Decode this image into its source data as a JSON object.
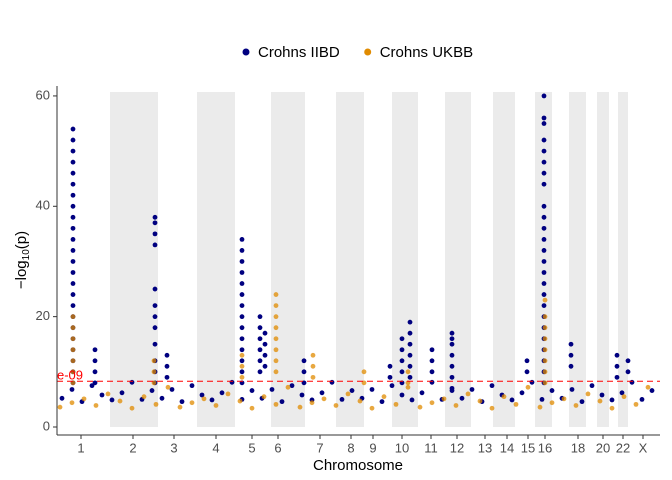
{
  "chart_data": {
    "type": "scatter",
    "x_label": "Chromosome",
    "y_label_parts": [
      "−log",
      "10",
      "(p)"
    ],
    "xlim": [
      0,
      603
    ],
    "ylim": [
      -1.45,
      61.8
    ],
    "yticks": [
      0,
      20,
      40,
      60
    ],
    "xticks": [
      {
        "value": 24,
        "label": "1"
      },
      {
        "value": 76,
        "label": "2"
      },
      {
        "value": 117,
        "label": "3"
      },
      {
        "value": 159,
        "label": "4"
      },
      {
        "value": 195,
        "label": "5"
      },
      {
        "value": 221,
        "label": "6"
      },
      {
        "value": 263,
        "label": "7"
      },
      {
        "value": 294,
        "label": "8"
      },
      {
        "value": 316,
        "label": "9"
      },
      {
        "value": 345,
        "label": "10"
      },
      {
        "value": 374,
        "label": "11"
      },
      {
        "value": 400,
        "label": "12"
      },
      {
        "value": 428,
        "label": "13"
      },
      {
        "value": 450,
        "label": "14"
      },
      {
        "value": 471,
        "label": "15"
      },
      {
        "value": 488,
        "label": "16"
      },
      {
        "value": 521,
        "label": "18"
      },
      {
        "value": 546,
        "label": "20"
      },
      {
        "value": 566,
        "label": "22"
      },
      {
        "value": 586,
        "label": "X"
      }
    ],
    "bands": [
      [
        53,
        101
      ],
      [
        140,
        178
      ],
      [
        214,
        248
      ],
      [
        279,
        307
      ],
      [
        335,
        361
      ],
      [
        388,
        414
      ],
      [
        436,
        458
      ],
      [
        478,
        495
      ],
      [
        512,
        529
      ],
      [
        540,
        552
      ],
      [
        561,
        571
      ]
    ],
    "band_color": "#ebebeb",
    "threshold": 8.3,
    "threshold_label": "e-09",
    "threshold_color": "#ff0000",
    "legend": "top",
    "series": [
      {
        "name": "Crohns IIBD",
        "color": "#000080",
        "x": [
          5,
          15,
          25,
          35,
          45,
          55,
          65,
          75,
          85,
          95,
          105,
          115,
          125,
          135,
          145,
          155,
          165,
          175,
          185,
          195,
          205,
          215,
          225,
          235,
          245,
          255,
          265,
          275,
          285,
          295,
          305,
          315,
          325,
          335,
          345,
          355,
          365,
          375,
          385,
          395,
          405,
          415,
          425,
          435,
          445,
          455,
          465,
          475,
          485,
          495,
          505,
          515,
          525,
          535,
          545,
          555,
          565,
          575,
          585,
          595,
          16,
          16,
          16,
          16,
          16,
          16,
          16,
          16,
          16,
          16,
          16,
          16,
          16,
          16,
          16,
          16,
          16,
          16,
          16,
          16,
          16,
          16,
          16,
          16,
          38,
          38,
          38,
          38,
          98,
          98,
          98,
          98,
          98,
          98,
          98,
          98,
          98,
          98,
          98,
          98,
          110,
          110,
          110,
          185,
          185,
          185,
          185,
          185,
          185,
          185,
          185,
          185,
          185,
          185,
          185,
          185,
          185,
          203,
          203,
          203,
          203,
          203,
          203,
          208,
          208,
          208,
          208,
          247,
          247,
          247,
          333,
          333,
          345,
          345,
          345,
          345,
          345,
          353,
          353,
          353,
          353,
          353,
          353,
          375,
          375,
          375,
          395,
          395,
          395,
          395,
          395,
          395,
          395,
          470,
          470,
          487,
          487,
          487,
          487,
          487,
          487,
          487,
          487,
          487,
          487,
          487,
          487,
          487,
          487,
          487,
          487,
          487,
          487,
          487,
          487,
          487,
          487,
          487,
          487,
          487,
          514,
          514,
          514,
          560,
          560,
          560,
          571,
          571
        ],
        "values": [
          5.2,
          6.8,
          4.6,
          7.5,
          5.8,
          4.9,
          6.2,
          8.1,
          5.0,
          6.6,
          5.2,
          6.8,
          4.6,
          7.5,
          5.8,
          4.9,
          6.2,
          8.1,
          5.0,
          6.6,
          5.2,
          6.8,
          4.6,
          7.5,
          5.8,
          4.9,
          6.2,
          8.1,
          5.0,
          6.6,
          5.2,
          6.8,
          4.6,
          7.5,
          5.8,
          4.9,
          6.2,
          8.1,
          5.0,
          6.6,
          5.2,
          6.8,
          4.6,
          7.5,
          5.8,
          4.9,
          6.2,
          8.1,
          5.0,
          6.6,
          5.2,
          6.8,
          4.6,
          7.5,
          5.8,
          4.9,
          6.2,
          8.1,
          5.0,
          6.6,
          54,
          52,
          50,
          48,
          46,
          44,
          42,
          40,
          38,
          36,
          34,
          32,
          30,
          28,
          26,
          24,
          22,
          20,
          18,
          16,
          14,
          12,
          10,
          8,
          14,
          12,
          10,
          8,
          38,
          37,
          35,
          33,
          25,
          22,
          20,
          18,
          15,
          12,
          10,
          8,
          13,
          11,
          9,
          34,
          32,
          30,
          28,
          26,
          24,
          22,
          20,
          18,
          16,
          14,
          12,
          10,
          8,
          20,
          18,
          16,
          14,
          12,
          10,
          17,
          15,
          13,
          11,
          12,
          10,
          8,
          11,
          9,
          16,
          14,
          12,
          10,
          8,
          19,
          17,
          15,
          13,
          11,
          9,
          14,
          12,
          10,
          17,
          16,
          15,
          13,
          11,
          9,
          7,
          12,
          10,
          60,
          56,
          55,
          52,
          50,
          48,
          46,
          44,
          40,
          38,
          36,
          34,
          32,
          30,
          28,
          26,
          24,
          22,
          20,
          18,
          16,
          14,
          12,
          10,
          8,
          15,
          13,
          11,
          13,
          11,
          9,
          12,
          10
        ]
      },
      {
        "name": "Crohns UKBB",
        "color": "#e08b00",
        "x": [
          3,
          15,
          27,
          39,
          51,
          63,
          75,
          87,
          99,
          111,
          123,
          135,
          147,
          159,
          171,
          183,
          195,
          207,
          219,
          231,
          243,
          255,
          267,
          279,
          291,
          303,
          315,
          327,
          339,
          351,
          363,
          375,
          387,
          399,
          411,
          423,
          435,
          447,
          459,
          471,
          483,
          495,
          507,
          519,
          531,
          543,
          555,
          567,
          579,
          591,
          16,
          16,
          16,
          16,
          16,
          16,
          16,
          97,
          97,
          97,
          185,
          185,
          185,
          219,
          219,
          219,
          219,
          219,
          219,
          219,
          219,
          256,
          256,
          256,
          307,
          307,
          488,
          488,
          488,
          488,
          488,
          488,
          488,
          488,
          351,
          351
        ],
        "values": [
          3.6,
          4.4,
          5.1,
          3.9,
          6.0,
          4.7,
          3.4,
          5.5,
          4.1,
          7.2,
          3.6,
          4.4,
          5.1,
          3.9,
          6.0,
          4.7,
          3.4,
          5.5,
          4.1,
          7.2,
          3.6,
          4.4,
          5.1,
          3.9,
          6.0,
          4.7,
          3.4,
          5.5,
          4.1,
          7.2,
          3.6,
          4.4,
          5.1,
          3.9,
          6.0,
          4.7,
          3.4,
          5.5,
          4.1,
          7.2,
          3.6,
          4.4,
          5.1,
          3.9,
          6.0,
          4.7,
          3.4,
          5.5,
          4.1,
          7.2,
          20,
          18,
          16,
          14,
          12,
          10,
          8,
          12,
          10,
          8,
          13,
          11,
          9,
          24,
          22,
          20,
          18,
          16,
          14,
          12,
          10,
          13,
          11,
          9,
          10,
          8,
          23,
          20,
          18,
          16,
          14,
          12,
          10,
          8,
          10,
          8
        ]
      }
    ]
  }
}
